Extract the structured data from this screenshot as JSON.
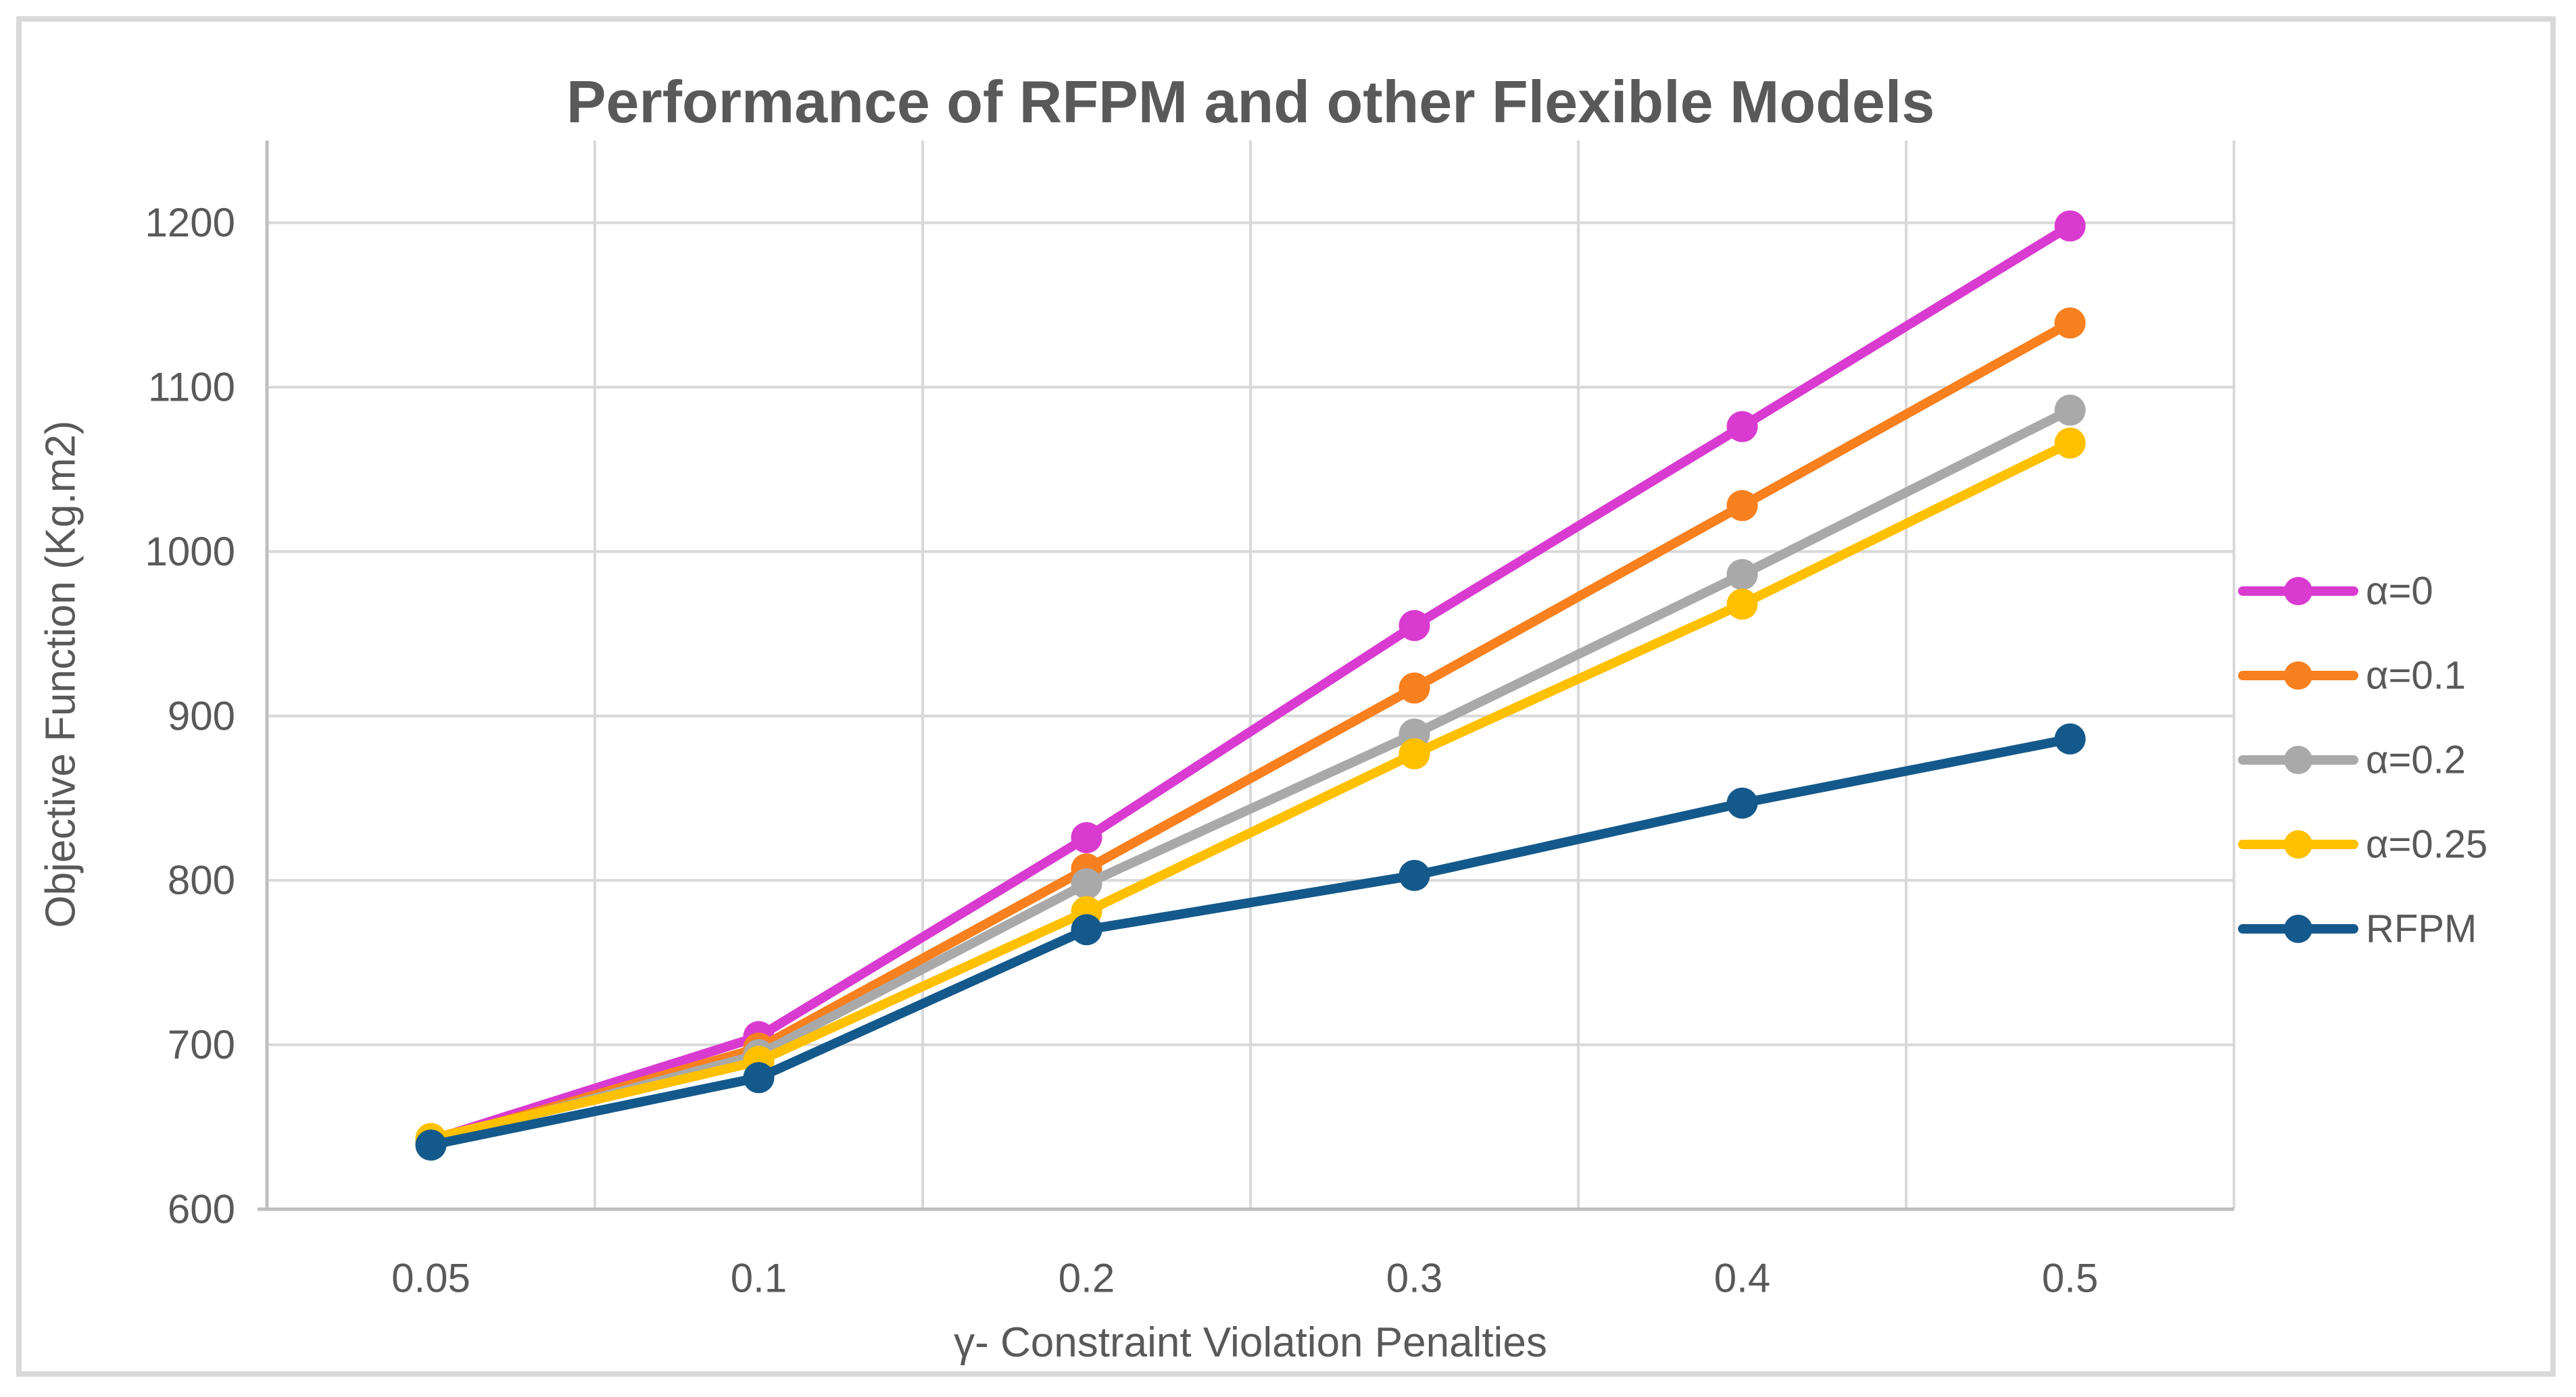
{
  "figure": {
    "background": "#ffffff",
    "border_color": "#d9d9d9"
  },
  "chart_data": {
    "type": "line",
    "title": "Performance of RFPM and other Flexible Models",
    "xlabel": "γ- Constraint Violation Penalties",
    "ylabel": "Objective Function (Kg.m2)",
    "categories": [
      "0.05",
      "0.1",
      "0.2",
      "0.3",
      "0.4",
      "0.5"
    ],
    "y_ticks": [
      600,
      700,
      800,
      900,
      1000,
      1100,
      1200
    ],
    "ylim": [
      600,
      1250
    ],
    "grid": "both",
    "legend_position": "right",
    "series": [
      {
        "name": "α=0",
        "color": "#d93bd0",
        "values": [
          642,
          705,
          826,
          955,
          1076,
          1198
        ]
      },
      {
        "name": "α=0.1",
        "color": "#f8801e",
        "values": [
          641,
          698,
          807,
          917,
          1028,
          1139
        ]
      },
      {
        "name": "α=0.2",
        "color": "#a9a9a9",
        "values": [
          641,
          694,
          798,
          889,
          986,
          1086
        ]
      },
      {
        "name": "α=0.25",
        "color": "#ffc000",
        "values": [
          643,
          690,
          781,
          877,
          968,
          1066
        ]
      },
      {
        "name": "RFPM",
        "color": "#14598b",
        "values": [
          639,
          680,
          770,
          803,
          847,
          886
        ]
      }
    ],
    "colors": {
      "gridline": "#d9d9d9",
      "axis_line": "#bfbfbf",
      "text": "#595959"
    }
  }
}
